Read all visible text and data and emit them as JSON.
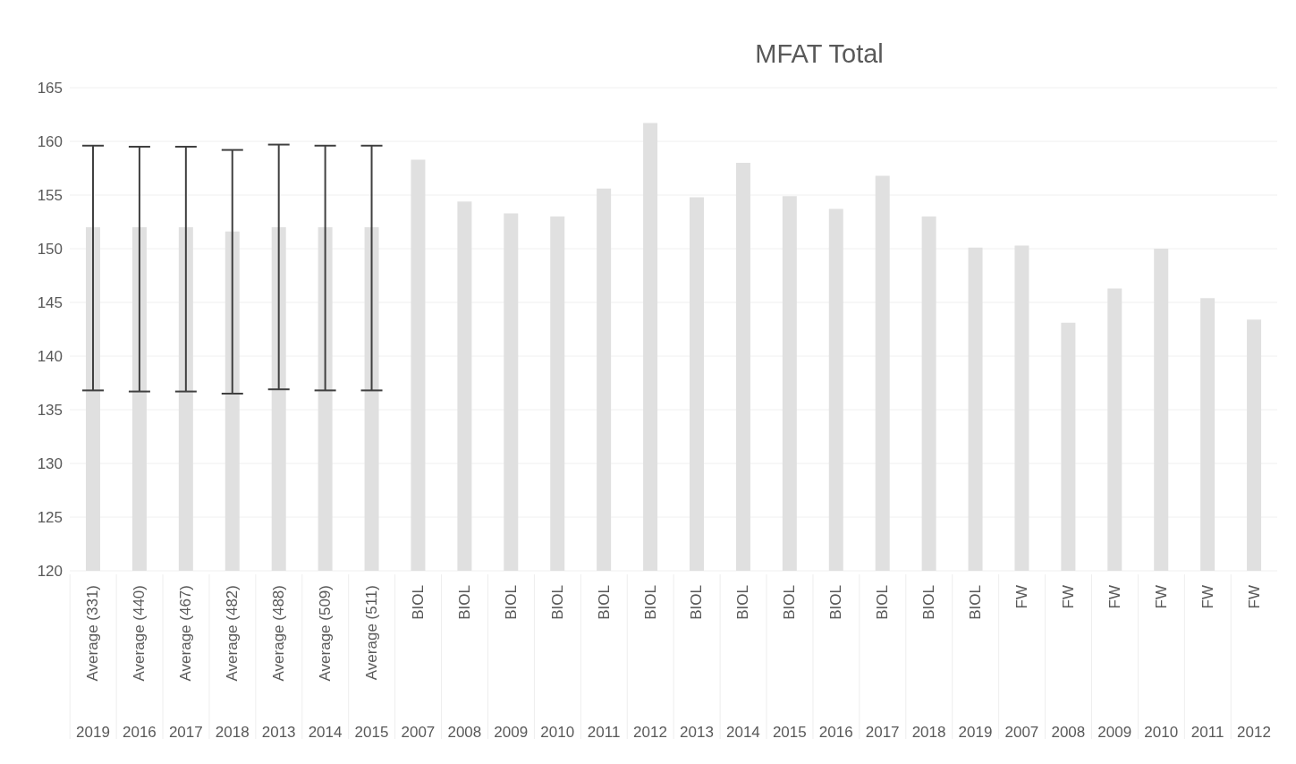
{
  "chart_data": {
    "type": "bar",
    "title": "MFAT Total",
    "categories": [
      "Average (331)\n2019",
      "Average (440)\n2016",
      "Average (467)\n2017",
      "Average (482)\n2018",
      "Average (488)\n2013",
      "Average (509)\n2014",
      "Average (511)\n2015",
      "BIOL\n2007",
      "BIOL\n2008",
      "BIOL\n2009",
      "BIOL\n2010",
      "BIOL\n2011",
      "BIOL\n2012",
      "BIOL\n2013",
      "BIOL\n2014",
      "BIOL\n2015",
      "BIOL\n2016",
      "BIOL\n2017",
      "BIOL\n2018",
      "BIOL\n2019",
      "FW\n2007",
      "FW\n2008",
      "FW\n2009",
      "FW\n2010",
      "FW\n2011",
      "FW\n2012"
    ],
    "values": [
      152.0,
      152.0,
      152.0,
      151.6,
      152.0,
      152.0,
      152.0,
      158.3,
      154.4,
      153.3,
      153.0,
      155.6,
      161.7,
      154.8,
      158.0,
      154.9,
      153.7,
      156.8,
      153.0,
      150.1,
      150.3,
      143.1,
      146.3,
      150.0,
      145.4,
      143.4
    ],
    "errors": [
      [
        136.8,
        159.6
      ],
      [
        136.7,
        159.5
      ],
      [
        136.7,
        159.5
      ],
      [
        136.5,
        159.2
      ],
      [
        136.9,
        159.7
      ],
      [
        136.8,
        159.6
      ],
      [
        136.8,
        159.6
      ],
      null,
      null,
      null,
      null,
      null,
      null,
      null,
      null,
      null,
      null,
      null,
      null,
      null,
      null,
      null,
      null,
      null,
      null,
      null
    ],
    "color": "#e0e0e0",
    "ylim": [
      120,
      165
    ],
    "yticks": [
      120,
      125,
      130,
      135,
      140,
      145,
      150,
      155,
      160,
      165
    ],
    "grid": "y",
    "legend": false
  }
}
